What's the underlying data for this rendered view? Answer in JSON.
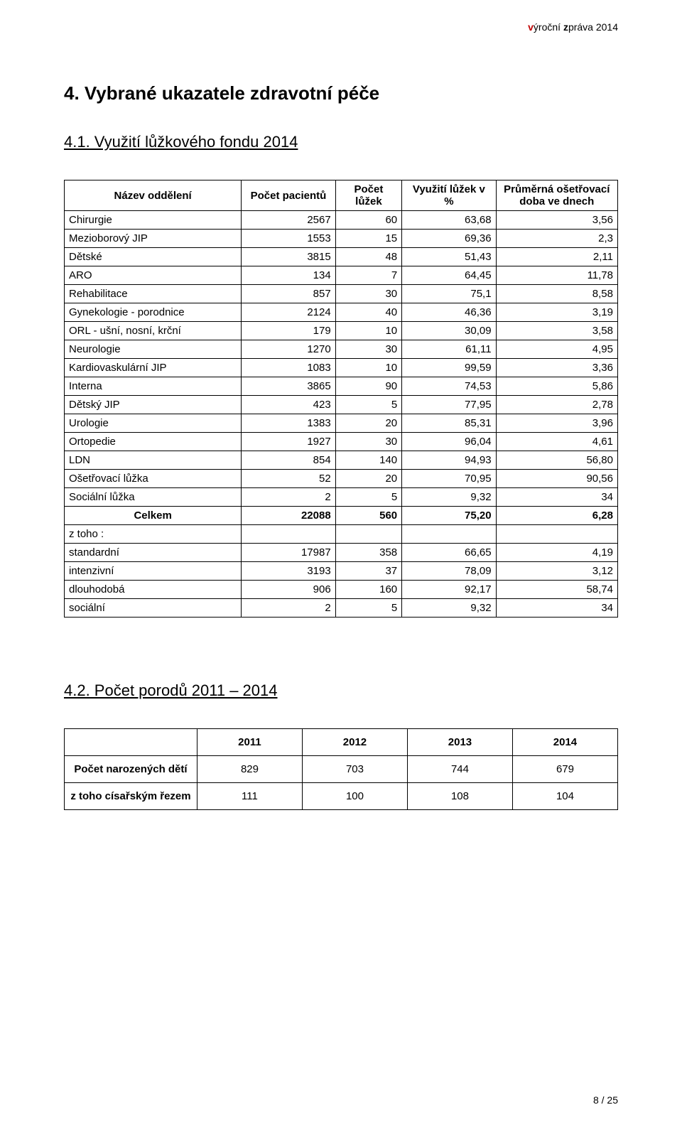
{
  "header": {
    "v": "v",
    "yrocni": "ýroční ",
    "z": "z",
    "prava": "práva 2014"
  },
  "section1": {
    "title": "4. Vybrané ukazatele zdravotní péče",
    "sub": "4.1. Využití lůžkového fondu 2014",
    "columns": [
      "Název oddělení",
      "Počet pacientů",
      "Počet lůžek",
      "Využití lůžek v %",
      "Průměrná ošetřovací doba ve dnech"
    ],
    "rows": [
      {
        "name": "Chirurgie",
        "a": "2567",
        "b": "60",
        "c": "63,68",
        "d": "3,56"
      },
      {
        "name": "Mezioborový JIP",
        "a": "1553",
        "b": "15",
        "c": "69,36",
        "d": "2,3"
      },
      {
        "name": "Dětské",
        "a": "3815",
        "b": "48",
        "c": "51,43",
        "d": "2,11"
      },
      {
        "name": "ARO",
        "a": "134",
        "b": "7",
        "c": "64,45",
        "d": "11,78"
      },
      {
        "name": "Rehabilitace",
        "a": "857",
        "b": "30",
        "c": "75,1",
        "d": "8,58"
      },
      {
        "name": "Gynekologie - porodnice",
        "a": "2124",
        "b": "40",
        "c": "46,36",
        "d": "3,19"
      },
      {
        "name": "ORL - ušní, nosní, krční",
        "a": "179",
        "b": "10",
        "c": "30,09",
        "d": "3,58"
      },
      {
        "name": "Neurologie",
        "a": "1270",
        "b": "30",
        "c": "61,11",
        "d": "4,95"
      },
      {
        "name": "Kardiovaskulární JIP",
        "a": "1083",
        "b": "10",
        "c": "99,59",
        "d": "3,36"
      },
      {
        "name": "Interna",
        "a": "3865",
        "b": "90",
        "c": "74,53",
        "d": "5,86"
      },
      {
        "name": "Dětský JIP",
        "a": "423",
        "b": "5",
        "c": "77,95",
        "d": "2,78"
      },
      {
        "name": "Urologie",
        "a": "1383",
        "b": "20",
        "c": "85,31",
        "d": "3,96"
      },
      {
        "name": "Ortopedie",
        "a": "1927",
        "b": "30",
        "c": "96,04",
        "d": "4,61"
      },
      {
        "name": "LDN",
        "a": "854",
        "b": "140",
        "c": "94,93",
        "d": "56,80"
      },
      {
        "name": "Ošetřovací lůžka",
        "a": "52",
        "b": "20",
        "c": "70,95",
        "d": "90,56"
      },
      {
        "name": "Sociální lůžka",
        "a": "2",
        "b": "5",
        "c": "9,32",
        "d": "34"
      }
    ],
    "total": {
      "name": "Celkem",
      "a": "22088",
      "b": "560",
      "c": "75,20",
      "d": "6,28"
    },
    "ztoho_label": "z toho :",
    "ztoho": [
      {
        "name": "standardní",
        "a": "17987",
        "b": "358",
        "c": "66,65",
        "d": "4,19"
      },
      {
        "name": "intenzivní",
        "a": "3193",
        "b": "37",
        "c": "78,09",
        "d": "3,12"
      },
      {
        "name": "dlouhodobá",
        "a": "906",
        "b": "160",
        "c": "92,17",
        "d": "58,74"
      },
      {
        "name": "sociální",
        "a": "2",
        "b": "5",
        "c": "9,32",
        "d": "34"
      }
    ]
  },
  "section2": {
    "sub": "4.2. Počet porodů 2011 – 2014",
    "years": [
      "2011",
      "2012",
      "2013",
      "2014"
    ],
    "rows": [
      {
        "label": "Počet narozených dětí",
        "v": [
          "829",
          "703",
          "744",
          "679"
        ]
      },
      {
        "label": "z toho císařským řezem",
        "v": [
          "111",
          "100",
          "108",
          "104"
        ]
      }
    ]
  },
  "footer": "8 / 25"
}
